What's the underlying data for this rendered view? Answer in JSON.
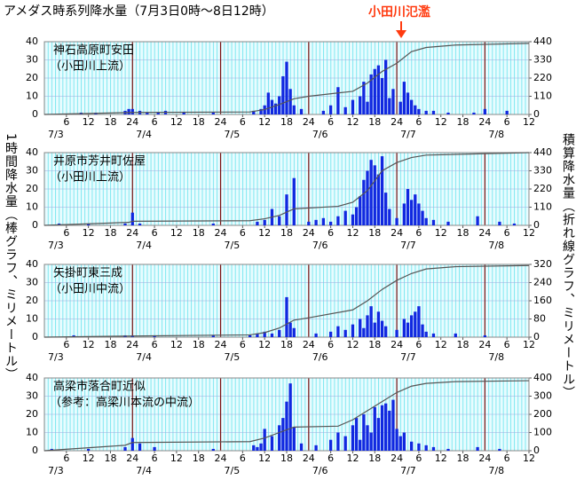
{
  "title": "アメダス時系列降水量（7月3日0時～8日12時）",
  "annotation": "小田川氾濫",
  "ylabel": "1時間降水量（棒グラフ、ミリメートル）",
  "y2label": "積算降水量（折れ線グラフ、ミリメートル）",
  "chart_data": [
    {
      "type": "bar_line",
      "title": "神石高原町安田",
      "subtitle": "（小田川上流）",
      "xlim": [
        0,
        132
      ],
      "ylim": [
        0,
        40
      ],
      "yticks": [
        0,
        10,
        20,
        30,
        40
      ],
      "y2lim": [
        0,
        440
      ],
      "y2ticks": [
        0,
        110,
        220,
        330,
        440
      ],
      "xticks": [
        6,
        12,
        18,
        24,
        {
          "value": 30,
          "label": "6"
        },
        {
          "value": 36,
          "label": "12"
        },
        {
          "value": 42,
          "label": "18"
        },
        {
          "value": 48,
          "label": "24"
        },
        {
          "value": 54,
          "label": "6"
        },
        {
          "value": 60,
          "label": "12"
        },
        {
          "value": 66,
          "label": "18"
        },
        {
          "value": 72,
          "label": "24"
        },
        {
          "value": 78,
          "label": "6"
        },
        {
          "value": 84,
          "label": "12"
        },
        {
          "value": 90,
          "label": "18"
        },
        {
          "value": 96,
          "label": "24"
        },
        {
          "value": 102,
          "label": "6"
        },
        {
          "value": 108,
          "label": "12"
        },
        {
          "value": 114,
          "label": "18"
        },
        {
          "value": 120,
          "label": "24"
        },
        {
          "value": 126,
          "label": "6"
        },
        {
          "value": 132,
          "label": "12"
        }
      ],
      "date_labels": [
        {
          "value": 0,
          "label": "7/3"
        },
        {
          "value": 24,
          "label": "7/4"
        },
        {
          "value": 48,
          "label": "7/5"
        },
        {
          "value": 72,
          "label": "7/6"
        },
        {
          "value": 96,
          "label": "7/7"
        },
        {
          "value": 120,
          "label": "7/8"
        }
      ],
      "series": [
        {
          "type": "bar",
          "color": "#1028e0",
          "x": [
            10,
            14,
            22,
            23,
            24,
            26,
            28,
            31,
            33,
            38,
            46,
            57,
            59,
            60,
            61,
            62,
            63,
            64,
            65,
            66,
            67,
            68,
            70,
            76,
            78,
            80,
            82,
            84,
            86,
            87,
            88,
            89,
            90,
            91,
            92,
            93,
            94,
            95,
            97,
            98,
            99,
            100,
            101,
            102,
            104,
            106,
            110,
            117,
            120,
            126
          ],
          "values": [
            1,
            1,
            2,
            3,
            3,
            2,
            1,
            1,
            2,
            1,
            1,
            2,
            3,
            5,
            12,
            8,
            6,
            10,
            21,
            29,
            14,
            5,
            3,
            2,
            5,
            15,
            4,
            8,
            10,
            18,
            7,
            22,
            25,
            27,
            20,
            30,
            9,
            14,
            7,
            18,
            12,
            8,
            5,
            3,
            2,
            2,
            1,
            1,
            3,
            2
          ]
        },
        {
          "type": "line",
          "axis": "y2",
          "color": "#555555",
          "x": [
            0,
            24,
            56,
            60,
            64,
            68,
            72,
            84,
            88,
            92,
            96,
            100,
            104,
            112,
            132
          ],
          "values": [
            0,
            12,
            15,
            30,
            60,
            95,
            110,
            140,
            190,
            260,
            310,
            380,
            405,
            420,
            430
          ]
        }
      ]
    },
    {
      "type": "bar_line",
      "title": "井原市芳井町佐屋",
      "subtitle": "（小田川上流）",
      "xlim": [
        0,
        132
      ],
      "ylim": [
        0,
        40
      ],
      "yticks": [
        0,
        10,
        20,
        30,
        40
      ],
      "y2lim": [
        0,
        440
      ],
      "y2ticks": [
        0,
        110,
        220,
        330,
        440
      ],
      "xticks": [
        6,
        12,
        18,
        24,
        {
          "value": 30,
          "label": "6"
        },
        {
          "value": 36,
          "label": "12"
        },
        {
          "value": 42,
          "label": "18"
        },
        {
          "value": 48,
          "label": "24"
        },
        {
          "value": 54,
          "label": "6"
        },
        {
          "value": 60,
          "label": "12"
        },
        {
          "value": 66,
          "label": "18"
        },
        {
          "value": 72,
          "label": "24"
        },
        {
          "value": 78,
          "label": "6"
        },
        {
          "value": 84,
          "label": "12"
        },
        {
          "value": 90,
          "label": "18"
        },
        {
          "value": 96,
          "label": "24"
        },
        {
          "value": 102,
          "label": "6"
        },
        {
          "value": 108,
          "label": "12"
        },
        {
          "value": 114,
          "label": "18"
        },
        {
          "value": 120,
          "label": "24"
        },
        {
          "value": 126,
          "label": "6"
        },
        {
          "value": 132,
          "label": "12"
        }
      ],
      "date_labels": [
        {
          "value": 0,
          "label": "7/3"
        },
        {
          "value": 24,
          "label": "7/4"
        },
        {
          "value": 48,
          "label": "7/5"
        },
        {
          "value": 72,
          "label": "7/6"
        },
        {
          "value": 96,
          "label": "7/7"
        },
        {
          "value": 120,
          "label": "7/8"
        }
      ],
      "series": [
        {
          "type": "bar",
          "color": "#1028e0",
          "x": [
            4,
            12,
            22,
            24,
            26,
            46,
            58,
            60,
            62,
            64,
            66,
            68,
            72,
            74,
            76,
            78,
            80,
            82,
            84,
            85,
            86,
            87,
            88,
            89,
            90,
            91,
            92,
            93,
            94,
            96,
            98,
            99,
            100,
            101,
            102,
            103,
            104,
            106,
            110,
            118,
            124,
            128
          ],
          "values": [
            1,
            1,
            1,
            7,
            1,
            1,
            2,
            3,
            9,
            5,
            17,
            26,
            2,
            3,
            4,
            2,
            5,
            8,
            6,
            10,
            16,
            25,
            30,
            36,
            33,
            28,
            38,
            18,
            9,
            4,
            12,
            20,
            14,
            17,
            12,
            8,
            4,
            3,
            2,
            5,
            2,
            1
          ]
        },
        {
          "type": "line",
          "axis": "y2",
          "color": "#555555",
          "x": [
            0,
            23,
            24,
            56,
            60,
            64,
            68,
            80,
            84,
            88,
            92,
            96,
            100,
            104,
            132
          ],
          "values": [
            0,
            18,
            25,
            28,
            40,
            60,
            100,
            115,
            140,
            210,
            330,
            380,
            410,
            425,
            440
          ]
        }
      ]
    },
    {
      "type": "bar_line",
      "title": "矢掛町東三成",
      "subtitle": "（小田川中流）",
      "xlim": [
        0,
        132
      ],
      "ylim": [
        0,
        40
      ],
      "yticks": [
        0,
        10,
        20,
        30,
        40
      ],
      "y2lim": [
        0,
        320
      ],
      "y2ticks": [
        0,
        80,
        160,
        240,
        320
      ],
      "xticks": [
        6,
        12,
        18,
        24,
        {
          "value": 30,
          "label": "6"
        },
        {
          "value": 36,
          "label": "12"
        },
        {
          "value": 42,
          "label": "18"
        },
        {
          "value": 48,
          "label": "24"
        },
        {
          "value": 54,
          "label": "6"
        },
        {
          "value": 60,
          "label": "12"
        },
        {
          "value": 66,
          "label": "18"
        },
        {
          "value": 72,
          "label": "24"
        },
        {
          "value": 78,
          "label": "6"
        },
        {
          "value": 84,
          "label": "12"
        },
        {
          "value": 90,
          "label": "18"
        },
        {
          "value": 96,
          "label": "24"
        },
        {
          "value": 102,
          "label": "6"
        },
        {
          "value": 108,
          "label": "12"
        },
        {
          "value": 114,
          "label": "18"
        },
        {
          "value": 120,
          "label": "24"
        },
        {
          "value": 126,
          "label": "6"
        },
        {
          "value": 132,
          "label": "12"
        }
      ],
      "date_labels": [
        {
          "value": 0,
          "label": "7/3"
        },
        {
          "value": 24,
          "label": "7/4"
        },
        {
          "value": 48,
          "label": "7/5"
        },
        {
          "value": 72,
          "label": "7/6"
        },
        {
          "value": 96,
          "label": "7/7"
        },
        {
          "value": 120,
          "label": "7/8"
        }
      ],
      "series": [
        {
          "type": "bar",
          "color": "#1028e0",
          "x": [
            8,
            22,
            24,
            30,
            46,
            56,
            58,
            60,
            62,
            64,
            66,
            67,
            68,
            74,
            78,
            80,
            82,
            84,
            86,
            87,
            88,
            89,
            90,
            91,
            92,
            93,
            96,
            98,
            99,
            100,
            101,
            102,
            103,
            104,
            106,
            112,
            120
          ],
          "values": [
            1,
            1,
            1,
            1,
            1,
            1,
            2,
            3,
            2,
            4,
            22,
            8,
            5,
            2,
            3,
            6,
            4,
            7,
            10,
            5,
            12,
            17,
            8,
            14,
            9,
            6,
            4,
            10,
            8,
            12,
            14,
            17,
            7,
            3,
            2,
            2,
            1
          ]
        },
        {
          "type": "line",
          "axis": "y2",
          "color": "#555555",
          "x": [
            0,
            24,
            56,
            60,
            64,
            68,
            72,
            84,
            88,
            92,
            96,
            100,
            104,
            112,
            132
          ],
          "values": [
            0,
            5,
            10,
            20,
            40,
            75,
            85,
            120,
            160,
            210,
            250,
            280,
            300,
            310,
            315
          ]
        }
      ]
    },
    {
      "type": "bar_line",
      "title": "高梁市落合町近似",
      "subtitle": "（参考：高梁川本流の中流）",
      "xlim": [
        0,
        132
      ],
      "ylim": [
        0,
        40
      ],
      "yticks": [
        0,
        10,
        20,
        30,
        40
      ],
      "y2lim": [
        0,
        400
      ],
      "y2ticks": [
        0,
        100,
        200,
        300,
        400
      ],
      "xticks": [
        6,
        12,
        18,
        24,
        {
          "value": 30,
          "label": "6"
        },
        {
          "value": 36,
          "label": "12"
        },
        {
          "value": 42,
          "label": "18"
        },
        {
          "value": 48,
          "label": "24"
        },
        {
          "value": 54,
          "label": "6"
        },
        {
          "value": 60,
          "label": "12"
        },
        {
          "value": 66,
          "label": "18"
        },
        {
          "value": 72,
          "label": "24"
        },
        {
          "value": 78,
          "label": "6"
        },
        {
          "value": 84,
          "label": "12"
        },
        {
          "value": 90,
          "label": "18"
        },
        {
          "value": 96,
          "label": "24"
        },
        {
          "value": 102,
          "label": "6"
        },
        {
          "value": 108,
          "label": "12"
        },
        {
          "value": 114,
          "label": "18"
        },
        {
          "value": 120,
          "label": "24"
        },
        {
          "value": 126,
          "label": "6"
        },
        {
          "value": 132,
          "label": "12"
        }
      ],
      "date_labels": [
        {
          "value": 0,
          "label": "7/3"
        },
        {
          "value": 24,
          "label": "7/4"
        },
        {
          "value": 48,
          "label": "7/5"
        },
        {
          "value": 72,
          "label": "7/6"
        },
        {
          "value": 96,
          "label": "7/7"
        },
        {
          "value": 120,
          "label": "7/8"
        }
      ],
      "series": [
        {
          "type": "bar",
          "color": "#1028e0",
          "x": [
            2,
            12,
            22,
            24,
            26,
            30,
            46,
            57,
            58,
            59,
            60,
            62,
            64,
            65,
            66,
            67,
            68,
            70,
            74,
            78,
            80,
            82,
            84,
            85,
            86,
            87,
            88,
            89,
            90,
            91,
            92,
            93,
            94,
            95,
            96,
            97,
            98,
            100,
            102,
            104,
            106,
            110,
            118,
            124
          ],
          "values": [
            1,
            1,
            2,
            7,
            4,
            2,
            1,
            3,
            2,
            4,
            12,
            8,
            14,
            18,
            27,
            37,
            13,
            4,
            3,
            6,
            10,
            8,
            14,
            18,
            6,
            20,
            14,
            10,
            24,
            18,
            25,
            26,
            22,
            28,
            12,
            8,
            10,
            5,
            4,
            3,
            2,
            1,
            2,
            1
          ]
        },
        {
          "type": "line",
          "axis": "y2",
          "color": "#555555",
          "x": [
            0,
            22,
            24,
            56,
            60,
            64,
            68,
            80,
            84,
            88,
            92,
            96,
            100,
            104,
            112,
            132
          ],
          "values": [
            0,
            30,
            45,
            50,
            70,
            100,
            130,
            135,
            170,
            220,
            270,
            320,
            355,
            370,
            380,
            385
          ]
        }
      ]
    }
  ]
}
